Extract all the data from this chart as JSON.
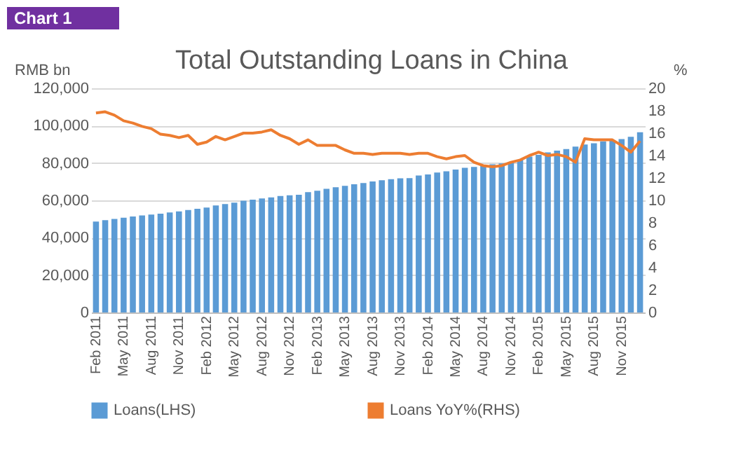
{
  "chart_data": {
    "type": "bar",
    "title": "Total Outstanding Loans in China",
    "annotations": [
      "Chart 1"
    ],
    "ylabel": "RMB bn",
    "y2label": "%",
    "categories": [
      "Feb 2011",
      null,
      null,
      "May 2011",
      null,
      null,
      "Aug 2011",
      null,
      null,
      "Nov 2011",
      null,
      null,
      "Feb 2012",
      null,
      null,
      "May 2012",
      null,
      null,
      "Aug 2012",
      null,
      null,
      "Nov 2012",
      null,
      null,
      "Feb 2013",
      null,
      null,
      "May 2013",
      null,
      null,
      "Aug 2013",
      null,
      null,
      "Nov 2013",
      null,
      null,
      "Feb 2014",
      null,
      null,
      "May 2014",
      null,
      null,
      "Aug 2014",
      null,
      null,
      "Nov 2014",
      null,
      null,
      "Feb 2015",
      null,
      null,
      "May 2015",
      null,
      null,
      "Aug 2015",
      null,
      null,
      "Nov 2015",
      null,
      null
    ],
    "series": [
      {
        "name": "Loans(LHS)",
        "color": "#5b9bd5",
        "values": [
          48700,
          49400,
          50100,
          50700,
          51400,
          51900,
          52400,
          52900,
          53500,
          54100,
          54800,
          55500,
          56200,
          57300,
          58000,
          58800,
          59800,
          60400,
          61000,
          61600,
          62300,
          62700,
          63000,
          64400,
          65200,
          66200,
          67000,
          67800,
          68600,
          69300,
          70100,
          70800,
          71300,
          71800,
          71900,
          73300,
          73900,
          74900,
          75600,
          76500,
          77400,
          77900,
          78500,
          79300,
          79800,
          80600,
          81700,
          83400,
          84400,
          85700,
          86600,
          87500,
          88800,
          89900,
          90600,
          91600,
          92100,
          92800,
          94000,
          96500
        ]
      },
      {
        "name": "Loans YoY%(RHS)",
        "type": "line",
        "axis": "y2",
        "color": "#ed7d31",
        "values": [
          17.8,
          17.9,
          17.6,
          17.1,
          16.9,
          16.6,
          16.4,
          15.9,
          15.8,
          15.6,
          15.8,
          15.0,
          15.2,
          15.7,
          15.4,
          15.7,
          16.0,
          16.0,
          16.1,
          16.3,
          15.8,
          15.5,
          15.0,
          15.4,
          14.9,
          14.9,
          14.9,
          14.5,
          14.2,
          14.2,
          14.1,
          14.2,
          14.2,
          14.2,
          14.1,
          14.2,
          14.2,
          13.9,
          13.7,
          13.9,
          14.0,
          13.4,
          13.1,
          13.0,
          13.1,
          13.4,
          13.6,
          14.0,
          14.3,
          14.0,
          14.1,
          13.9,
          13.4,
          15.5,
          15.4,
          15.4,
          15.4,
          14.9,
          14.3,
          15.3
        ]
      }
    ],
    "ylim": [
      0,
      120000
    ],
    "yticks": [
      0,
      {
        "value": 20000,
        "label": "20,000"
      },
      {
        "value": 40000,
        "label": "40,000"
      },
      {
        "value": 60000,
        "label": "60,000"
      },
      {
        "value": 80000,
        "label": "80,000"
      },
      {
        "value": 100000,
        "label": "100,000"
      },
      {
        "value": 120000,
        "label": "120,000"
      }
    ],
    "y2lim": [
      0,
      20
    ],
    "y2ticks": [
      0,
      2,
      4,
      6,
      8,
      10,
      12,
      14,
      16,
      18,
      20
    ],
    "grid": "y",
    "legend": "bottom",
    "marker": "none",
    "line_style": "solid"
  }
}
